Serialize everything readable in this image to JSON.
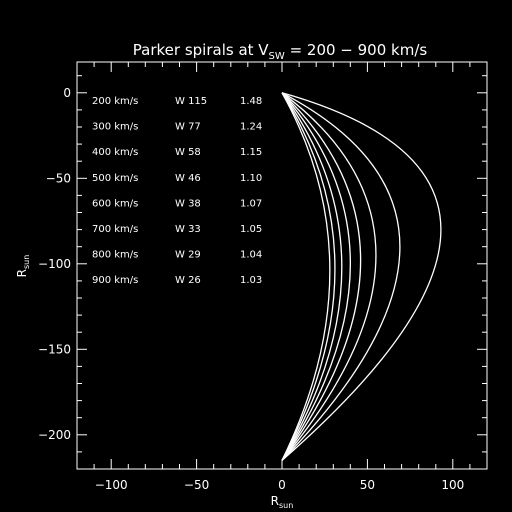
{
  "chart_data": {
    "type": "line",
    "title_main": "Parker spirals at V",
    "title_sub": "SW",
    "title_rest": " = 200 − 900 km/s",
    "xlabel": "R",
    "xlabel_sub": "sun",
    "ylabel": "R",
    "ylabel_sub": "sun",
    "xlim": [
      -120,
      120
    ],
    "ylim": [
      -220,
      18
    ],
    "xticks": [
      -100,
      -50,
      0,
      50,
      100
    ],
    "yticks": [
      0,
      -50,
      -100,
      -150,
      -200
    ],
    "xtick_labels": [
      "−100",
      "−50",
      "0",
      "50",
      "100"
    ],
    "ytick_labels": [
      "0",
      "−50",
      "−100",
      "−150",
      "−200"
    ],
    "grid": false,
    "legend": "top-left",
    "line_color": "#ffffff",
    "spiral_start": [
      0,
      -215
    ],
    "spiral_end": [
      0,
      0
    ],
    "annotations": [
      {
        "speed": "200 km/s",
        "angle": "W 115",
        "ratio": "1.48"
      },
      {
        "speed": "300 km/s",
        "angle": "W 77",
        "ratio": "1.24"
      },
      {
        "speed": "400 km/s",
        "angle": "W 58",
        "ratio": "1.15"
      },
      {
        "speed": "500 km/s",
        "angle": "W 46",
        "ratio": "1.10"
      },
      {
        "speed": "600 km/s",
        "angle": "W 38",
        "ratio": "1.07"
      },
      {
        "speed": "700 km/s",
        "angle": "W 33",
        "ratio": "1.05"
      },
      {
        "speed": "800 km/s",
        "angle": "W 29",
        "ratio": "1.04"
      },
      {
        "speed": "900 km/s",
        "angle": "W 26",
        "ratio": "1.03"
      }
    ],
    "series": [
      {
        "name": "200 km/s",
        "max_x": 93,
        "max_y": -80
      },
      {
        "name": "300 km/s",
        "max_x": 69,
        "max_y": -90
      },
      {
        "name": "400 km/s",
        "max_x": 55,
        "max_y": -95
      },
      {
        "name": "500 km/s",
        "max_x": 46,
        "max_y": -98
      },
      {
        "name": "600 km/s",
        "max_x": 40,
        "max_y": -100
      },
      {
        "name": "700 km/s",
        "max_x": 35,
        "max_y": -102
      },
      {
        "name": "800 km/s",
        "max_x": 31,
        "max_y": -103
      },
      {
        "name": "900 km/s",
        "max_x": 28,
        "max_y": -104
      }
    ]
  }
}
